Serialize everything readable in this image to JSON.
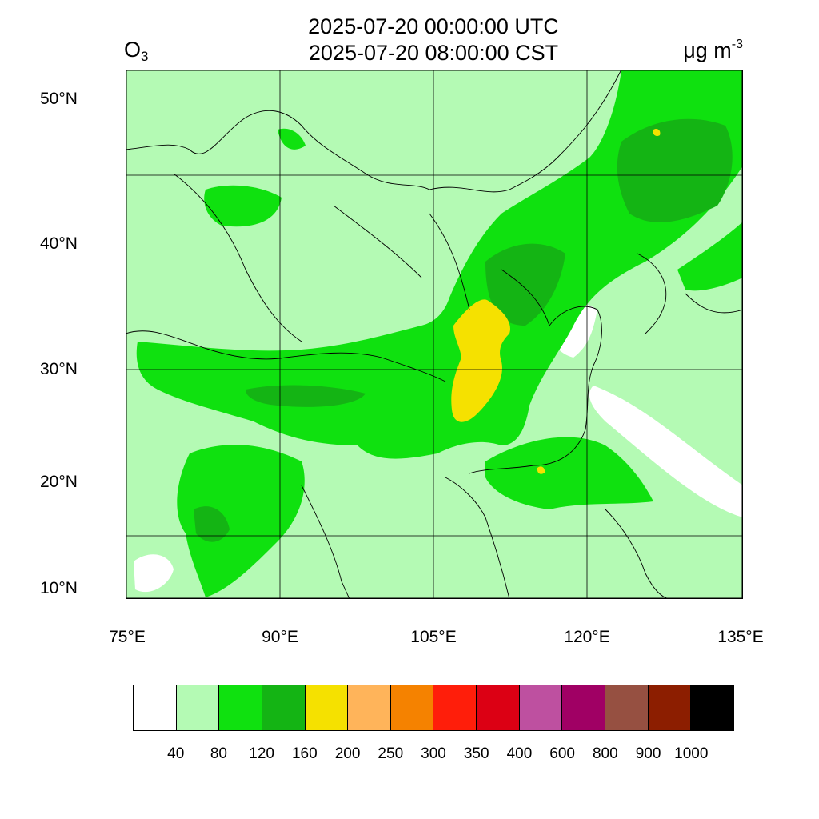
{
  "header": {
    "title_utc": "2025-07-20 00:00:00 UTC",
    "title_cst": "2025-07-20 08:00:00 CST",
    "variable_main": "O",
    "variable_sub": "3",
    "unit_main": "μg m",
    "unit_sup": "-3"
  },
  "axes": {
    "lat_labels": [
      "50°N",
      "40°N",
      "30°N",
      "20°N",
      "10°N"
    ],
    "lon_labels": [
      "75°E",
      "90°E",
      "105°E",
      "120°E",
      "135°E"
    ],
    "lon_range": [
      75,
      135
    ],
    "lat_range": [
      9,
      52
    ]
  },
  "colorbar": {
    "colors": [
      "#ffffff",
      "#b4fab4",
      "#0fe10f",
      "#14b414",
      "#f5e100",
      "#ffb45a",
      "#f58200",
      "#ff1e0a",
      "#dc0014",
      "#be50a0",
      "#a00064",
      "#965041",
      "#8c1e00",
      "#000000"
    ],
    "labels": [
      "40",
      "80",
      "120",
      "160",
      "200",
      "250",
      "300",
      "350",
      "400",
      "600",
      "800",
      "900",
      "1000"
    ]
  },
  "map_colors": {
    "land_background": "#b4fab4",
    "green_mid": "#0fe10f",
    "green_dark": "#14b414",
    "yellow_hot": "#f5e100",
    "white_low": "#ffffff",
    "grid_line": "#000000"
  }
}
